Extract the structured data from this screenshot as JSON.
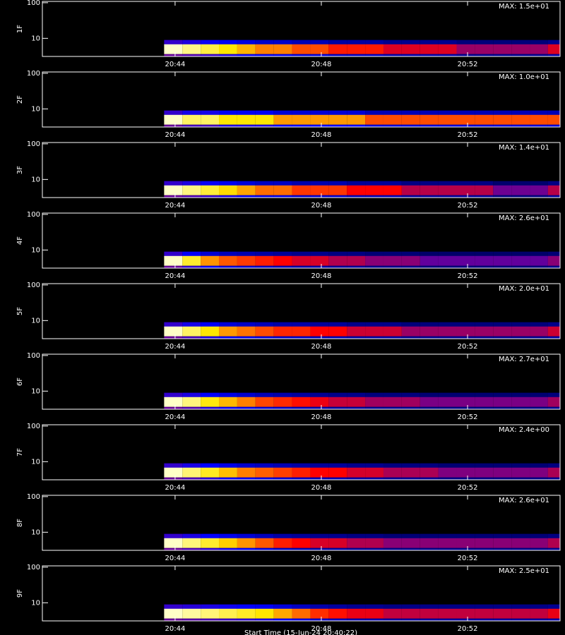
{
  "chart_data": [
    {
      "type": "heatmap",
      "title": "MAX: 1.5e+01",
      "ylabel": "1F",
      "log_y": true,
      "ylim": [
        3.1,
        109
      ],
      "yticks": [
        10,
        100
      ],
      "xlim": [
        1240.37,
        1254.53
      ],
      "xticks": [
        {
          "value": 1244,
          "label": "20:44"
        },
        {
          "value": 1248,
          "label": "20:48"
        },
        {
          "value": 1252,
          "label": "20:52"
        }
      ],
      "x": [
        1243.7,
        1244.2,
        1244.7,
        1245.2,
        1245.7,
        1246.2,
        1246.7,
        1247.2,
        1247.7,
        1248.2,
        1248.7,
        1249.2,
        1249.7,
        1250.2,
        1250.7,
        1251.2,
        1251.7,
        1252.2,
        1252.7,
        1253.2,
        1253.7,
        1254.2
      ],
      "values": [
        15,
        14,
        13,
        12,
        11,
        10,
        10,
        9,
        9,
        8,
        8,
        8,
        7,
        7,
        7,
        7,
        6,
        6,
        6,
        6,
        6,
        7
      ]
    },
    {
      "type": "heatmap",
      "title": "MAX: 1.0e+01",
      "ylabel": "2F",
      "log_y": true,
      "ylim": [
        3.1,
        109
      ],
      "yticks": [
        10,
        100
      ],
      "xlim": [
        1240.37,
        1254.53
      ],
      "xticks": [
        {
          "value": 1244,
          "label": "20:44"
        },
        {
          "value": 1248,
          "label": "20:48"
        },
        {
          "value": 1252,
          "label": "20:52"
        }
      ],
      "x": [
        1243.7,
        1244.2,
        1244.7,
        1245.2,
        1245.7,
        1246.2,
        1246.7,
        1247.2,
        1247.7,
        1248.2,
        1248.7,
        1249.2,
        1249.7,
        1250.2,
        1250.7,
        1251.2,
        1251.7,
        1252.2,
        1252.7,
        1253.2,
        1253.7,
        1254.2
      ],
      "values": [
        10,
        9,
        9,
        8,
        8,
        8,
        7,
        7,
        7,
        7,
        7,
        6,
        6,
        6,
        6,
        6,
        6,
        6,
        6,
        6,
        6,
        6
      ]
    },
    {
      "type": "heatmap",
      "title": "MAX: 1.4e+01",
      "ylabel": "3F",
      "log_y": true,
      "ylim": [
        3.1,
        109
      ],
      "yticks": [
        10,
        100
      ],
      "xlim": [
        1240.37,
        1254.53
      ],
      "xticks": [
        {
          "value": 1244,
          "label": "20:44"
        },
        {
          "value": 1248,
          "label": "20:48"
        },
        {
          "value": 1252,
          "label": "20:52"
        }
      ],
      "x": [
        1243.7,
        1244.2,
        1244.7,
        1245.2,
        1245.7,
        1246.2,
        1246.7,
        1247.2,
        1247.7,
        1248.2,
        1248.7,
        1249.2,
        1249.7,
        1250.2,
        1250.7,
        1251.2,
        1251.7,
        1252.2,
        1252.7,
        1253.2,
        1253.7,
        1254.2
      ],
      "values": [
        14,
        13,
        12,
        11,
        10,
        9,
        9,
        8,
        8,
        8,
        7,
        7,
        7,
        6,
        6,
        6,
        6,
        6,
        5,
        5,
        5,
        6
      ]
    },
    {
      "type": "heatmap",
      "title": "MAX: 2.6e+01",
      "ylabel": "4F",
      "log_y": true,
      "ylim": [
        3.1,
        109
      ],
      "yticks": [
        10,
        100
      ],
      "xlim": [
        1240.37,
        1254.53
      ],
      "xticks": [
        {
          "value": 1244,
          "label": "20:44"
        },
        {
          "value": 1248,
          "label": "20:48"
        },
        {
          "value": 1252,
          "label": "20:52"
        }
      ],
      "x": [
        1243.7,
        1244.2,
        1244.7,
        1245.2,
        1245.7,
        1246.2,
        1246.7,
        1247.2,
        1247.7,
        1248.2,
        1248.7,
        1249.2,
        1249.7,
        1250.2,
        1250.7,
        1251.2,
        1251.7,
        1252.2,
        1252.7,
        1253.2,
        1253.7,
        1254.2
      ],
      "values": [
        26,
        22,
        18,
        16,
        15,
        14,
        13,
        12,
        12,
        11,
        11,
        10,
        10,
        10,
        9,
        9,
        9,
        9,
        9,
        9,
        9,
        10
      ]
    },
    {
      "type": "heatmap",
      "title": "MAX: 2.0e+01",
      "ylabel": "5F",
      "log_y": true,
      "ylim": [
        3.1,
        109
      ],
      "yticks": [
        10,
        100
      ],
      "xlim": [
        1240.37,
        1254.53
      ],
      "xticks": [
        {
          "value": 1244,
          "label": "20:44"
        },
        {
          "value": 1248,
          "label": "20:48"
        },
        {
          "value": 1252,
          "label": "20:52"
        }
      ],
      "x": [
        1243.7,
        1244.2,
        1244.7,
        1245.2,
        1245.7,
        1246.2,
        1246.7,
        1247.2,
        1247.7,
        1248.2,
        1248.7,
        1249.2,
        1249.7,
        1250.2,
        1250.7,
        1251.2,
        1251.7,
        1252.2,
        1252.7,
        1253.2,
        1253.7,
        1254.2
      ],
      "values": [
        20,
        18,
        16,
        14,
        13,
        12,
        11,
        11,
        10,
        10,
        9,
        9,
        9,
        8,
        8,
        8,
        8,
        8,
        8,
        8,
        8,
        9
      ]
    },
    {
      "type": "heatmap",
      "title": "MAX: 2.7e+01",
      "ylabel": "6F",
      "log_y": true,
      "ylim": [
        3.1,
        109
      ],
      "yticks": [
        10,
        100
      ],
      "xlim": [
        1240.37,
        1254.53
      ],
      "xticks": [
        {
          "value": 1244,
          "label": "20:44"
        },
        {
          "value": 1248,
          "label": "20:48"
        },
        {
          "value": 1252,
          "label": "20:52"
        }
      ],
      "x": [
        1243.7,
        1244.2,
        1244.7,
        1245.2,
        1245.7,
        1246.2,
        1246.7,
        1247.2,
        1247.7,
        1248.2,
        1248.7,
        1249.2,
        1249.7,
        1250.2,
        1250.7,
        1251.2,
        1251.7,
        1252.2,
        1252.7,
        1253.2,
        1253.7,
        1254.2
      ],
      "values": [
        27,
        25,
        22,
        20,
        18,
        16,
        15,
        14,
        13,
        12,
        12,
        11,
        11,
        11,
        10,
        10,
        10,
        10,
        10,
        10,
        10,
        11
      ]
    },
    {
      "type": "heatmap",
      "title": "MAX: 2.4e+00",
      "ylabel": "7F",
      "log_y": true,
      "ylim": [
        3.1,
        109
      ],
      "yticks": [
        10,
        100
      ],
      "xlim": [
        1240.37,
        1254.53
      ],
      "xticks": [
        {
          "value": 1244,
          "label": "20:44"
        },
        {
          "value": 1248,
          "label": "20:48"
        },
        {
          "value": 1252,
          "label": "20:52"
        }
      ],
      "x": [
        1243.7,
        1244.2,
        1244.7,
        1245.2,
        1245.7,
        1246.2,
        1246.7,
        1247.2,
        1247.7,
        1248.2,
        1248.7,
        1249.2,
        1249.7,
        1250.2,
        1250.7,
        1251.2,
        1251.7,
        1252.2,
        1252.7,
        1253.2,
        1253.7,
        1254.2
      ],
      "values": [
        2.4,
        2.2,
        2.0,
        1.8,
        1.6,
        1.5,
        1.4,
        1.3,
        1.2,
        1.2,
        1.1,
        1.1,
        1.0,
        1.0,
        1.0,
        0.9,
        0.9,
        0.9,
        0.9,
        0.9,
        0.9,
        1.0
      ]
    },
    {
      "type": "heatmap",
      "title": "MAX: 2.6e+01",
      "ylabel": "8F",
      "log_y": true,
      "ylim": [
        3.1,
        109
      ],
      "yticks": [
        10,
        100
      ],
      "xlim": [
        1240.37,
        1254.53
      ],
      "xticks": [
        {
          "value": 1244,
          "label": "20:44"
        },
        {
          "value": 1248,
          "label": "20:48"
        },
        {
          "value": 1252,
          "label": "20:52"
        }
      ],
      "x": [
        1243.7,
        1244.2,
        1244.7,
        1245.2,
        1245.7,
        1246.2,
        1246.7,
        1247.2,
        1247.7,
        1248.2,
        1248.7,
        1249.2,
        1249.7,
        1250.2,
        1250.7,
        1251.2,
        1251.7,
        1252.2,
        1252.7,
        1253.2,
        1253.7,
        1254.2
      ],
      "values": [
        26,
        24,
        22,
        20,
        18,
        16,
        14,
        13,
        12,
        12,
        11,
        11,
        10,
        10,
        10,
        10,
        10,
        10,
        10,
        10,
        10,
        11
      ]
    },
    {
      "type": "heatmap",
      "title": "MAX: 2.5e+01",
      "ylabel": "9F",
      "log_y": true,
      "ylim": [
        3.1,
        109
      ],
      "yticks": [
        10,
        100
      ],
      "xlim": [
        1240.37,
        1254.53
      ],
      "xticks": [
        {
          "value": 1244,
          "label": "20:44"
        },
        {
          "value": 1248,
          "label": "20:48"
        },
        {
          "value": 1252,
          "label": "20:52"
        }
      ],
      "x": [
        1243.7,
        1244.2,
        1244.7,
        1245.2,
        1245.7,
        1246.2,
        1246.7,
        1247.2,
        1247.7,
        1248.2,
        1248.7,
        1249.2,
        1249.7,
        1250.2,
        1250.7,
        1251.2,
        1251.7,
        1252.2,
        1252.7,
        1253.2,
        1253.7,
        1254.2
      ],
      "values": [
        25,
        24,
        23,
        22,
        21,
        20,
        18,
        16,
        14,
        13,
        12,
        12,
        11,
        11,
        11,
        11,
        11,
        11,
        11,
        11,
        11,
        12
      ],
      "xlabel": "Start Time (15-Jun-24 20:40:22)"
    }
  ]
}
